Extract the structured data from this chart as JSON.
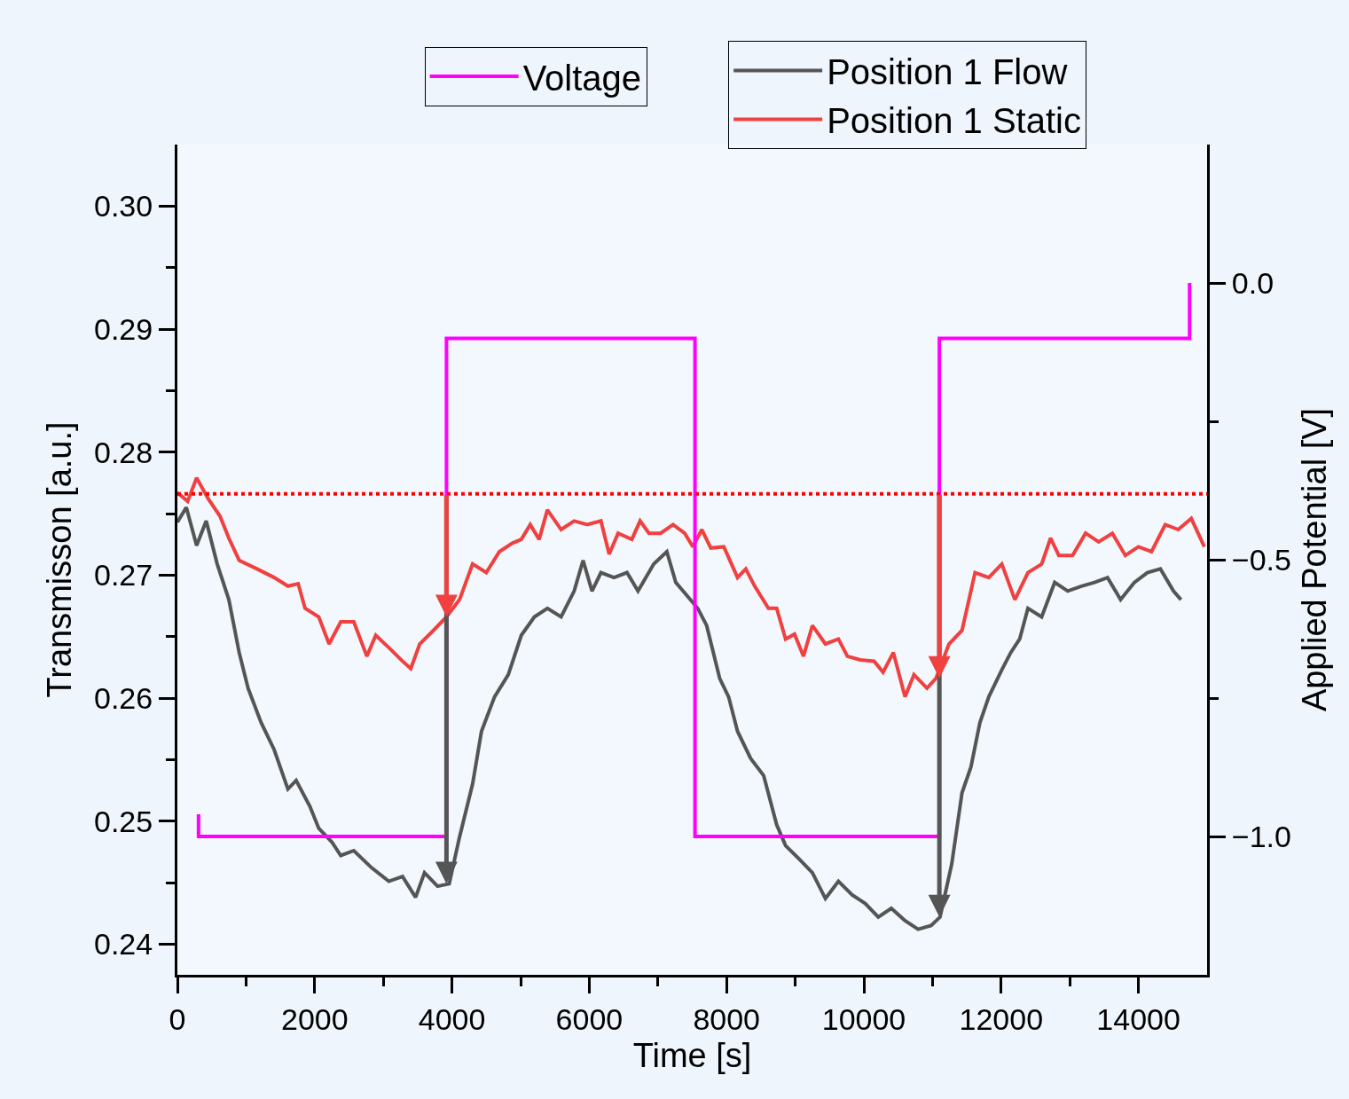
{
  "chart_data": {
    "type": "line",
    "xlabel": "Time [s]",
    "ylabel": "Transmisson [a.u.]",
    "y2label": "Applied Potential [V]",
    "xlim": [
      0,
      15000
    ],
    "xticks": [
      0,
      {
        "value": 1000,
        "label": null
      },
      2000,
      {
        "value": 3000,
        "label": null
      },
      4000,
      {
        "value": 5000,
        "label": null
      },
      6000,
      {
        "value": 7000,
        "label": null
      },
      8000,
      {
        "value": 9000,
        "label": null
      },
      10000,
      {
        "value": 11000,
        "label": null
      },
      12000,
      {
        "value": 13000,
        "label": null
      },
      14000
    ],
    "ylim": [
      0.2375,
      0.305
    ],
    "yticks": [
      0.24,
      {
        "value": 0.245,
        "label": null
      },
      0.25,
      {
        "value": 0.255,
        "label": null
      },
      0.26,
      {
        "value": 0.265,
        "label": null
      },
      0.27,
      {
        "value": 0.275,
        "label": null
      },
      0.28,
      {
        "value": 0.285,
        "label": null
      },
      0.29,
      {
        "value": 0.295,
        "label": null
      },
      {
        "value": 0.3,
        "label": "0.30"
      }
    ],
    "y2lim": [
      -1.25,
      0.25
    ],
    "y2ticks": [
      {
        "value": -1,
        "label": "−1.0"
      },
      {
        "value": -0.75,
        "label": null
      },
      {
        "value": -0.5,
        "label": "−0.5"
      },
      {
        "value": -0.25,
        "label": null
      },
      {
        "value": 0,
        "label": "0.0"
      }
    ],
    "grid": false,
    "legend": "top",
    "ref_lines": [
      {
        "axis": "y",
        "value": 0.2766,
        "color": "#ff0000",
        "line_style": "dotted"
      }
    ],
    "series": [
      {
        "name": "Voltage",
        "color": "#ff00ff",
        "axis": "y2",
        "x": [
          308,
          308,
          3920,
          3920,
          7540,
          7540,
          11100,
          11100,
          14745,
          14745
        ],
        "values": [
          -0.96,
          -1,
          -1,
          -0.1,
          -0.1,
          -1,
          -1,
          -0.1,
          -0.1,
          0
        ]
      },
      {
        "name": "Position 1 Flow",
        "color": "#555555",
        "x": [
          0,
          130,
          280,
          420,
          580,
          750,
          900,
          1030,
          1220,
          1410,
          1610,
          1730,
          1930,
          2060,
          2250,
          2380,
          2570,
          2830,
          3080,
          3280,
          3470,
          3600,
          3790,
          3960,
          4110,
          4300,
          4430,
          4620,
          4820,
          5010,
          5200,
          5390,
          5590,
          5780,
          5910,
          6040,
          6170,
          6360,
          6550,
          6710,
          6940,
          7130,
          7260,
          7580,
          7710,
          7900,
          8030,
          8160,
          8350,
          8540,
          8730,
          8860,
          9060,
          9250,
          9440,
          9630,
          9830,
          10020,
          10210,
          10400,
          10600,
          10790,
          10980,
          11110,
          11280,
          11430,
          11560,
          11690,
          11820,
          12010,
          12140,
          12270,
          12390,
          12590,
          12780,
          12970,
          13170,
          13360,
          13550,
          13740,
          13940,
          14130,
          14320,
          14510,
          14620
        ],
        "values": [
          0.2743,
          0.2755,
          0.2724,
          0.2744,
          0.2709,
          0.268,
          0.2637,
          0.2608,
          0.258,
          0.2558,
          0.2526,
          0.2533,
          0.2512,
          0.2494,
          0.2483,
          0.2472,
          0.2476,
          0.2462,
          0.2451,
          0.2455,
          0.2438,
          0.2458,
          0.2447,
          0.2449,
          0.2487,
          0.253,
          0.2573,
          0.2601,
          0.2619,
          0.2651,
          0.2666,
          0.2673,
          0.2666,
          0.2687,
          0.2712,
          0.2687,
          0.2702,
          0.2698,
          0.2702,
          0.2687,
          0.2709,
          0.2719,
          0.2694,
          0.2673,
          0.2659,
          0.2616,
          0.2601,
          0.2573,
          0.2551,
          0.2537,
          0.2497,
          0.248,
          0.2469,
          0.2458,
          0.2437,
          0.2451,
          0.244,
          0.2433,
          0.2422,
          0.2429,
          0.2419,
          0.2412,
          0.2415,
          0.2422,
          0.2465,
          0.2523,
          0.2544,
          0.258,
          0.2601,
          0.2623,
          0.2637,
          0.2648,
          0.2673,
          0.2666,
          0.2694,
          0.2687,
          0.2691,
          0.2694,
          0.2698,
          0.268,
          0.2694,
          0.2702,
          0.2705,
          0.2687,
          0.268
        ]
      },
      {
        "name": "Position 1 Static",
        "color": "#f04040",
        "x": [
          0,
          150,
          280,
          450,
          620,
          750,
          900,
          1160,
          1410,
          1610,
          1760,
          1860,
          2060,
          2210,
          2380,
          2570,
          2760,
          2890,
          3080,
          3280,
          3400,
          3530,
          3730,
          3920,
          4110,
          4300,
          4500,
          4690,
          4880,
          5010,
          5140,
          5270,
          5390,
          5590,
          5780,
          5970,
          6170,
          6290,
          6420,
          6620,
          6740,
          6870,
          7040,
          7220,
          7390,
          7510,
          7640,
          7770,
          7960,
          8160,
          8280,
          8410,
          8610,
          8730,
          8860,
          8990,
          9120,
          9250,
          9440,
          9630,
          9760,
          9950,
          10150,
          10280,
          10430,
          10600,
          10730,
          10920,
          11050,
          11240,
          11430,
          11620,
          11820,
          12010,
          12200,
          12390,
          12590,
          12720,
          12840,
          13040,
          13230,
          13420,
          13620,
          13810,
          14000,
          14190,
          14390,
          14580,
          14770,
          14960
        ],
        "values": [
          0.2767,
          0.276,
          0.2779,
          0.2762,
          0.2748,
          0.273,
          0.2712,
          0.2705,
          0.2698,
          0.2691,
          0.2693,
          0.2673,
          0.2666,
          0.2644,
          0.2662,
          0.2662,
          0.2634,
          0.2651,
          0.2641,
          0.263,
          0.2624,
          0.2644,
          0.2655,
          0.2666,
          0.268,
          0.2709,
          0.2702,
          0.2719,
          0.2726,
          0.2729,
          0.2741,
          0.2729,
          0.2753,
          0.2737,
          0.2744,
          0.2741,
          0.2744,
          0.2717,
          0.2734,
          0.2729,
          0.2744,
          0.2734,
          0.2734,
          0.2741,
          0.2734,
          0.2723,
          0.2737,
          0.2722,
          0.2723,
          0.2698,
          0.2705,
          0.2691,
          0.2673,
          0.2673,
          0.2648,
          0.2652,
          0.2634,
          0.2659,
          0.2644,
          0.2648,
          0.2634,
          0.2631,
          0.263,
          0.2621,
          0.2637,
          0.2601,
          0.2619,
          0.2608,
          0.2616,
          0.2644,
          0.2655,
          0.2702,
          0.2698,
          0.2709,
          0.268,
          0.2702,
          0.2709,
          0.273,
          0.2716,
          0.2716,
          0.2734,
          0.2727,
          0.2734,
          0.2716,
          0.2723,
          0.2719,
          0.2741,
          0.2737,
          0.2746,
          0.2723
        ]
      }
    ]
  }
}
